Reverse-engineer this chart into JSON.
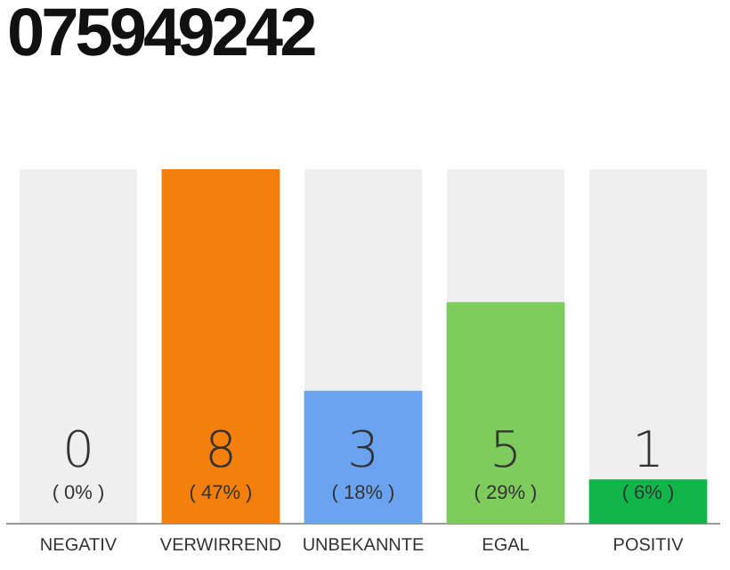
{
  "chart_data": {
    "type": "bar",
    "title": "075949242",
    "categories": [
      "NEGATIV",
      "VERWIRREND",
      "UNBEKANNTE",
      "EGAL",
      "POSITIV"
    ],
    "values": [
      0,
      8,
      3,
      5,
      1
    ],
    "colors": [
      "#ececec",
      "#f47f0d",
      "#6aa3f0",
      "#7ecb5e",
      "#12b54a"
    ],
    "data_labels": true,
    "annotations": [
      "( 0% )",
      "( 47% )",
      "( 18% )",
      "( 29% )",
      "( 6% )"
    ],
    "grid": false,
    "legend": false
  }
}
